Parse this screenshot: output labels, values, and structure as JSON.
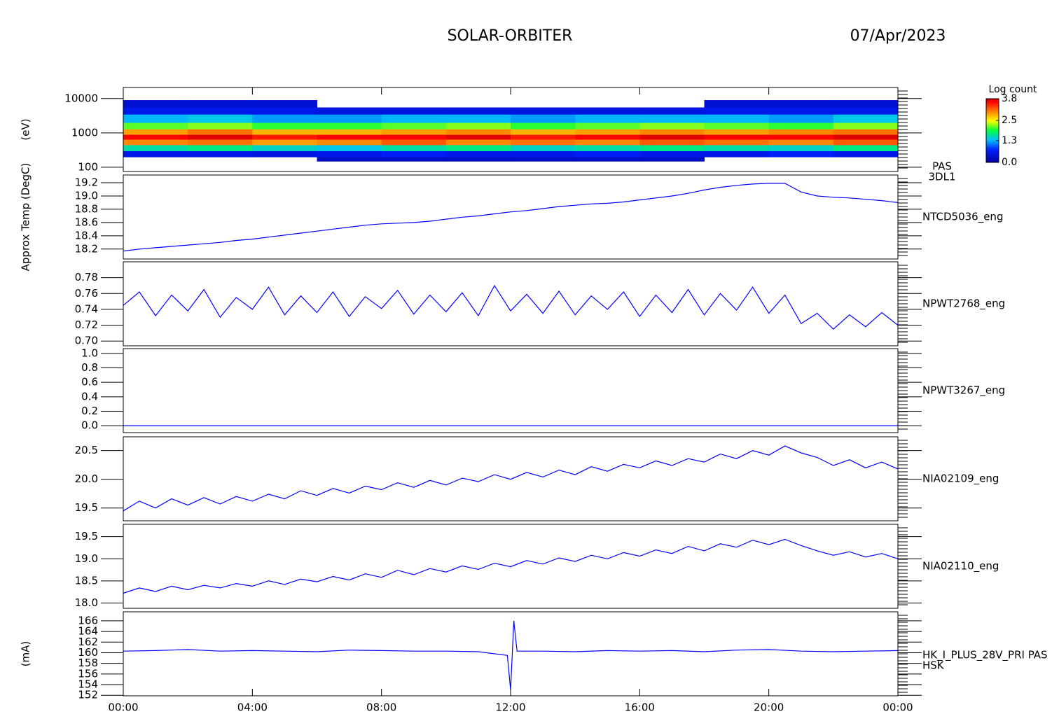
{
  "chart_data": {
    "type": "stacked-panels",
    "title": "SOLAR-ORBITER",
    "date": "07/Apr/2023",
    "xlim": [
      0,
      24
    ],
    "xticks": [
      {
        "value": 0,
        "label": "00:00"
      },
      {
        "value": 4,
        "label": "04:00"
      },
      {
        "value": 8,
        "label": "08:00"
      },
      {
        "value": 12,
        "label": "12:00"
      },
      {
        "value": 16,
        "label": "16:00"
      },
      {
        "value": 20,
        "label": "20:00"
      },
      {
        "value": 24,
        "label": "00:00"
      }
    ],
    "x": [
      0,
      0.5,
      1,
      1.5,
      2,
      2.5,
      3,
      3.5,
      4,
      4.5,
      5,
      5.5,
      6,
      6.5,
      7,
      7.5,
      8,
      8.5,
      9,
      9.5,
      10,
      10.5,
      11,
      11.5,
      12,
      12.5,
      13,
      13.5,
      14,
      14.5,
      15,
      15.5,
      16,
      16.5,
      17,
      17.5,
      18,
      18.5,
      19,
      19.5,
      20,
      20.5,
      21,
      21.5,
      22,
      22.5,
      23,
      23.5,
      24
    ],
    "panels": [
      {
        "type": "heatmap",
        "label": [
          "PAS",
          "3DL1"
        ],
        "ylabel": "(eV)",
        "log": true,
        "ylim": [
          75,
          21000
        ],
        "yticks": [
          100,
          1000,
          10000
        ],
        "x_edges": [
          0,
          2,
          4,
          6,
          8,
          10,
          12,
          14,
          16,
          18,
          20,
          22,
          24
        ],
        "y_edges": [
          150,
          200,
          300,
          450,
          650,
          900,
          1300,
          2000,
          3500,
          5500,
          9000
        ],
        "values": [
          [
            null,
            null,
            null,
            0.3,
            0.3,
            0.3,
            0.3,
            0.3,
            0.3,
            null,
            null,
            null
          ],
          [
            0.6,
            0.6,
            0.5,
            0.6,
            0.7,
            0.6,
            0.6,
            0.7,
            0.6,
            0.6,
            0.7,
            0.6
          ],
          [
            1.6,
            1.7,
            1.5,
            1.4,
            1.6,
            1.7,
            1.5,
            1.6,
            1.7,
            1.6,
            1.5,
            1.7
          ],
          [
            3.0,
            3.1,
            2.9,
            3.0,
            3.2,
            3.0,
            3.1,
            3.0,
            3.2,
            3.1,
            3.0,
            3.2
          ],
          [
            3.6,
            3.7,
            3.5,
            3.6,
            3.6,
            3.7,
            3.5,
            3.6,
            3.7,
            3.6,
            3.6,
            3.7
          ],
          [
            2.9,
            3.1,
            2.8,
            2.8,
            2.9,
            3.0,
            2.8,
            2.9,
            3.0,
            2.9,
            3.0,
            3.1
          ],
          [
            2.1,
            2.2,
            2.0,
            2.0,
            2.1,
            2.2,
            2.0,
            2.1,
            2.2,
            2.1,
            2.0,
            2.2
          ],
          [
            1.3,
            1.4,
            1.2,
            1.2,
            1.3,
            1.3,
            1.2,
            1.3,
            1.3,
            1.3,
            1.2,
            1.4
          ],
          [
            0.6,
            0.6,
            0.6,
            0.5,
            0.5,
            0.5,
            0.5,
            0.5,
            0.5,
            0.6,
            0.6,
            0.6
          ],
          [
            0.4,
            0.4,
            0.4,
            null,
            null,
            null,
            null,
            null,
            null,
            0.4,
            0.4,
            0.4
          ]
        ],
        "colorbar": {
          "title": "Log count",
          "clim": [
            0,
            3.8
          ],
          "ticks": [
            {
              "value": 0,
              "label": "0.0"
            },
            {
              "value": 1.3,
              "label": "1.3"
            },
            {
              "value": 2.5,
              "label": "2.5"
            },
            {
              "value": 3.8,
              "label": "3.8"
            }
          ]
        }
      },
      {
        "type": "line",
        "label": [
          "NTCD5036_eng"
        ],
        "ylabel": "Approx Temp (DegC)",
        "color": "#0000ff",
        "ylim": [
          18.05,
          19.316
        ],
        "yticks": [
          18.2,
          18.4,
          18.6,
          18.8,
          {
            "value": 19,
            "label": "19.0"
          },
          19.2
        ],
        "values": [
          18.17,
          18.2,
          18.22,
          18.24,
          18.26,
          18.28,
          18.3,
          18.33,
          18.35,
          18.38,
          18.41,
          18.44,
          18.47,
          18.5,
          18.53,
          18.56,
          18.58,
          18.59,
          18.6,
          18.62,
          18.65,
          18.68,
          18.7,
          18.73,
          18.76,
          18.78,
          18.81,
          18.84,
          18.86,
          18.88,
          18.89,
          18.91,
          18.94,
          18.97,
          19.0,
          19.04,
          19.09,
          19.13,
          19.16,
          19.18,
          19.19,
          19.19,
          19.06,
          19.0,
          18.98,
          18.97,
          18.95,
          18.93,
          18.9
        ]
      },
      {
        "type": "line",
        "label": [
          "NPWT2768_eng"
        ],
        "color": "#0000ff",
        "ylim": [
          0.694,
          0.8
        ],
        "yticks": [
          {
            "value": 0.7,
            "label": "0.70"
          },
          0.72,
          0.74,
          0.76,
          0.78
        ],
        "values": [
          0.745,
          0.762,
          0.732,
          0.758,
          0.738,
          0.765,
          0.73,
          0.755,
          0.74,
          0.768,
          0.733,
          0.757,
          0.736,
          0.762,
          0.731,
          0.756,
          0.741,
          0.764,
          0.734,
          0.758,
          0.737,
          0.761,
          0.732,
          0.77,
          0.738,
          0.759,
          0.735,
          0.763,
          0.733,
          0.757,
          0.74,
          0.762,
          0.731,
          0.758,
          0.736,
          0.765,
          0.733,
          0.76,
          0.739,
          0.768,
          0.735,
          0.758,
          0.722,
          0.735,
          0.715,
          0.733,
          0.718,
          0.736,
          0.72
        ]
      },
      {
        "type": "line",
        "label": [
          "NPWT3267_eng"
        ],
        "color": "#0000ff",
        "ylim": [
          -0.096,
          1.067
        ],
        "yticks": [
          {
            "value": 0,
            "label": "0.0"
          },
          0.2,
          0.4,
          0.6,
          0.8,
          {
            "value": 1,
            "label": "1.0"
          }
        ],
        "values": [
          0,
          0,
          0,
          0,
          0,
          0,
          0,
          0,
          0,
          0,
          0,
          0,
          0,
          0,
          0,
          0,
          0,
          0,
          0,
          0,
          0,
          0,
          0,
          0,
          0,
          0,
          0,
          0,
          0,
          0,
          0,
          0,
          0,
          0,
          0,
          0,
          0,
          0,
          0,
          0,
          0,
          0,
          0,
          0,
          0,
          0,
          0,
          0,
          0
        ]
      },
      {
        "type": "line",
        "label": [
          "NIA02109_eng"
        ],
        "color": "#0000ff",
        "ylim": [
          19.277,
          20.74
        ],
        "yticks": [
          19.5,
          {
            "value": 20,
            "label": "20.0"
          },
          20.5
        ],
        "values": [
          19.45,
          19.62,
          19.5,
          19.66,
          19.55,
          19.68,
          19.57,
          19.7,
          19.62,
          19.74,
          19.66,
          19.8,
          19.72,
          19.84,
          19.76,
          19.88,
          19.82,
          19.94,
          19.86,
          19.98,
          19.9,
          20.02,
          19.96,
          20.08,
          20.0,
          20.12,
          20.04,
          20.16,
          20.08,
          20.22,
          20.14,
          20.26,
          20.2,
          20.32,
          20.24,
          20.36,
          20.3,
          20.44,
          20.36,
          20.5,
          20.42,
          20.58,
          20.46,
          20.38,
          20.24,
          20.34,
          20.2,
          20.3,
          20.18
        ]
      },
      {
        "type": "line",
        "label": [
          "NIA02110_eng"
        ],
        "color": "#0000ff",
        "ylim": [
          17.88,
          19.78
        ],
        "yticks": [
          {
            "value": 18,
            "label": "18.0"
          },
          18.5,
          {
            "value": 19,
            "label": "19.0"
          },
          19.5
        ],
        "values": [
          18.22,
          18.34,
          18.26,
          18.38,
          18.3,
          18.4,
          18.34,
          18.44,
          18.38,
          18.5,
          18.42,
          18.54,
          18.48,
          18.6,
          18.52,
          18.66,
          18.58,
          18.74,
          18.64,
          18.78,
          18.7,
          18.84,
          18.76,
          18.9,
          18.82,
          18.96,
          18.88,
          19.02,
          18.94,
          19.08,
          19.0,
          19.14,
          19.06,
          19.2,
          19.12,
          19.28,
          19.18,
          19.34,
          19.26,
          19.42,
          19.32,
          19.44,
          19.3,
          19.18,
          19.08,
          19.16,
          19.04,
          19.12,
          19.0
        ]
      },
      {
        "type": "line",
        "label": [
          "HK_I_PLUS_28V_PRI PAS",
          "HSK"
        ],
        "ylabel": "(mA)",
        "color": "#0000ff",
        "ylim": [
          151.9,
          167.7
        ],
        "yticks": [
          152,
          154,
          156,
          158,
          160,
          162,
          164,
          166
        ],
        "x": [
          0,
          1,
          2,
          3,
          4,
          5,
          6,
          7,
          8,
          9,
          10,
          11,
          11.9,
          12,
          12.1,
          12.2,
          13,
          14,
          15,
          16,
          17,
          18,
          19,
          20,
          21,
          22,
          23,
          24
        ],
        "values": [
          160.3,
          160.4,
          160.6,
          160.3,
          160.4,
          160.3,
          160.2,
          160.5,
          160.4,
          160.3,
          160.3,
          160.2,
          159.5,
          153.0,
          166.0,
          160.3,
          160.3,
          160.2,
          160.4,
          160.3,
          160.4,
          160.2,
          160.5,
          160.6,
          160.3,
          160.2,
          160.3,
          160.4
        ]
      }
    ]
  }
}
